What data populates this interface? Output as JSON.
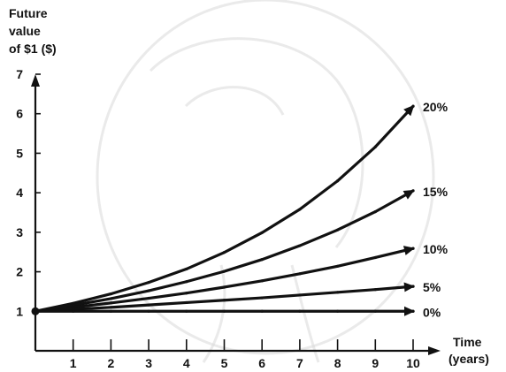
{
  "chart_data": {
    "type": "line",
    "ylabel_lines": [
      "Future",
      "value",
      "of $1 ($)"
    ],
    "xlabel_lines": [
      "Time",
      "(years)"
    ],
    "x": [
      0,
      1,
      2,
      3,
      4,
      5,
      6,
      7,
      8,
      9,
      10
    ],
    "x_ticks": [
      "1",
      "2",
      "3",
      "4",
      "5",
      "6",
      "7",
      "8",
      "9",
      "10"
    ],
    "y_ticks": [
      "1",
      "2",
      "3",
      "4",
      "5",
      "6",
      "7"
    ],
    "xlim": [
      0,
      10
    ],
    "ylim": [
      0,
      7
    ],
    "grid": false,
    "series": [
      {
        "name": "20%",
        "values": [
          1,
          1.2,
          1.44,
          1.73,
          2.07,
          2.49,
          2.99,
          3.58,
          4.3,
          5.16,
          6.19
        ]
      },
      {
        "name": "15%",
        "values": [
          1,
          1.15,
          1.32,
          1.52,
          1.75,
          2.01,
          2.31,
          2.66,
          3.06,
          3.52,
          4.05
        ]
      },
      {
        "name": "10%",
        "values": [
          1,
          1.1,
          1.21,
          1.33,
          1.46,
          1.61,
          1.77,
          1.95,
          2.14,
          2.36,
          2.59
        ]
      },
      {
        "name": "5%",
        "values": [
          1,
          1.05,
          1.1,
          1.16,
          1.22,
          1.28,
          1.34,
          1.41,
          1.48,
          1.55,
          1.63
        ]
      },
      {
        "name": "0%",
        "values": [
          1,
          1,
          1,
          1,
          1,
          1,
          1,
          1,
          1,
          1,
          1
        ]
      }
    ]
  }
}
